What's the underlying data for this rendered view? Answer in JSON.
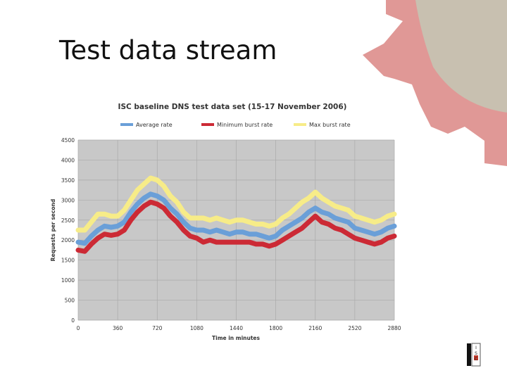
{
  "slide": {
    "title": "Test data stream"
  },
  "colors": {
    "gear_red": "#e09896",
    "gear_gray": "#c8c0b0",
    "plot_bg": "#c8c8c8",
    "grid": "#aaaaaa",
    "average": "#6a9fd8",
    "minimum": "#cc2a35",
    "maximum": "#f7ec88"
  },
  "logo": {
    "letters": [
      "I",
      "S",
      "C"
    ]
  },
  "chart_data": {
    "type": "line",
    "title": "ISC baseline DNS test data set (15-17 November 2006)",
    "xlabel": "Time in minutes",
    "ylabel": "Requests per second",
    "xlim": [
      0,
      2880
    ],
    "ylim": [
      0,
      4500
    ],
    "xticks": [
      0,
      360,
      720,
      1080,
      1440,
      1800,
      2160,
      2520,
      2880
    ],
    "yticks": [
      0,
      500,
      1000,
      1500,
      2000,
      2500,
      3000,
      3500,
      4000,
      4500
    ],
    "grid": true,
    "legend_position": "top",
    "x": [
      0,
      60,
      120,
      180,
      240,
      300,
      360,
      420,
      480,
      540,
      600,
      660,
      720,
      780,
      840,
      900,
      960,
      1020,
      1080,
      1140,
      1200,
      1260,
      1320,
      1380,
      1440,
      1500,
      1560,
      1620,
      1680,
      1740,
      1800,
      1860,
      1920,
      1980,
      2040,
      2100,
      2160,
      2220,
      2280,
      2340,
      2400,
      2460,
      2520,
      2580,
      2640,
      2700,
      2760,
      2820,
      2880
    ],
    "series": [
      {
        "name": "Average rate",
        "color": "#6a9fd8",
        "values": [
          1950,
          1920,
          2100,
          2250,
          2350,
          2320,
          2350,
          2450,
          2700,
          2900,
          3050,
          3150,
          3100,
          3000,
          2800,
          2650,
          2450,
          2300,
          2250,
          2250,
          2200,
          2250,
          2200,
          2150,
          2200,
          2200,
          2150,
          2150,
          2100,
          2050,
          2100,
          2250,
          2350,
          2450,
          2550,
          2700,
          2800,
          2700,
          2650,
          2550,
          2500,
          2450,
          2300,
          2250,
          2200,
          2150,
          2200,
          2300,
          2350
        ]
      },
      {
        "name": "Minimum burst rate",
        "color": "#cc2a35",
        "values": [
          1750,
          1720,
          1900,
          2050,
          2150,
          2120,
          2150,
          2250,
          2500,
          2700,
          2850,
          2950,
          2900,
          2800,
          2600,
          2450,
          2250,
          2100,
          2050,
          1950,
          2000,
          1950,
          1950,
          1950,
          1950,
          1950,
          1950,
          1900,
          1900,
          1850,
          1900,
          2000,
          2100,
          2200,
          2300,
          2450,
          2600,
          2450,
          2400,
          2300,
          2250,
          2150,
          2050,
          2000,
          1950,
          1900,
          1950,
          2050,
          2100
        ]
      },
      {
        "name": "Max burst rate",
        "color": "#f7ec88",
        "values": [
          2250,
          2250,
          2450,
          2650,
          2650,
          2600,
          2600,
          2750,
          3000,
          3250,
          3400,
          3550,
          3500,
          3350,
          3100,
          2950,
          2700,
          2550,
          2550,
          2550,
          2500,
          2550,
          2500,
          2450,
          2500,
          2500,
          2450,
          2400,
          2400,
          2350,
          2400,
          2550,
          2650,
          2800,
          2950,
          3050,
          3200,
          3050,
          2950,
          2850,
          2800,
          2750,
          2600,
          2550,
          2500,
          2450,
          2500,
          2600,
          2650
        ]
      }
    ]
  }
}
